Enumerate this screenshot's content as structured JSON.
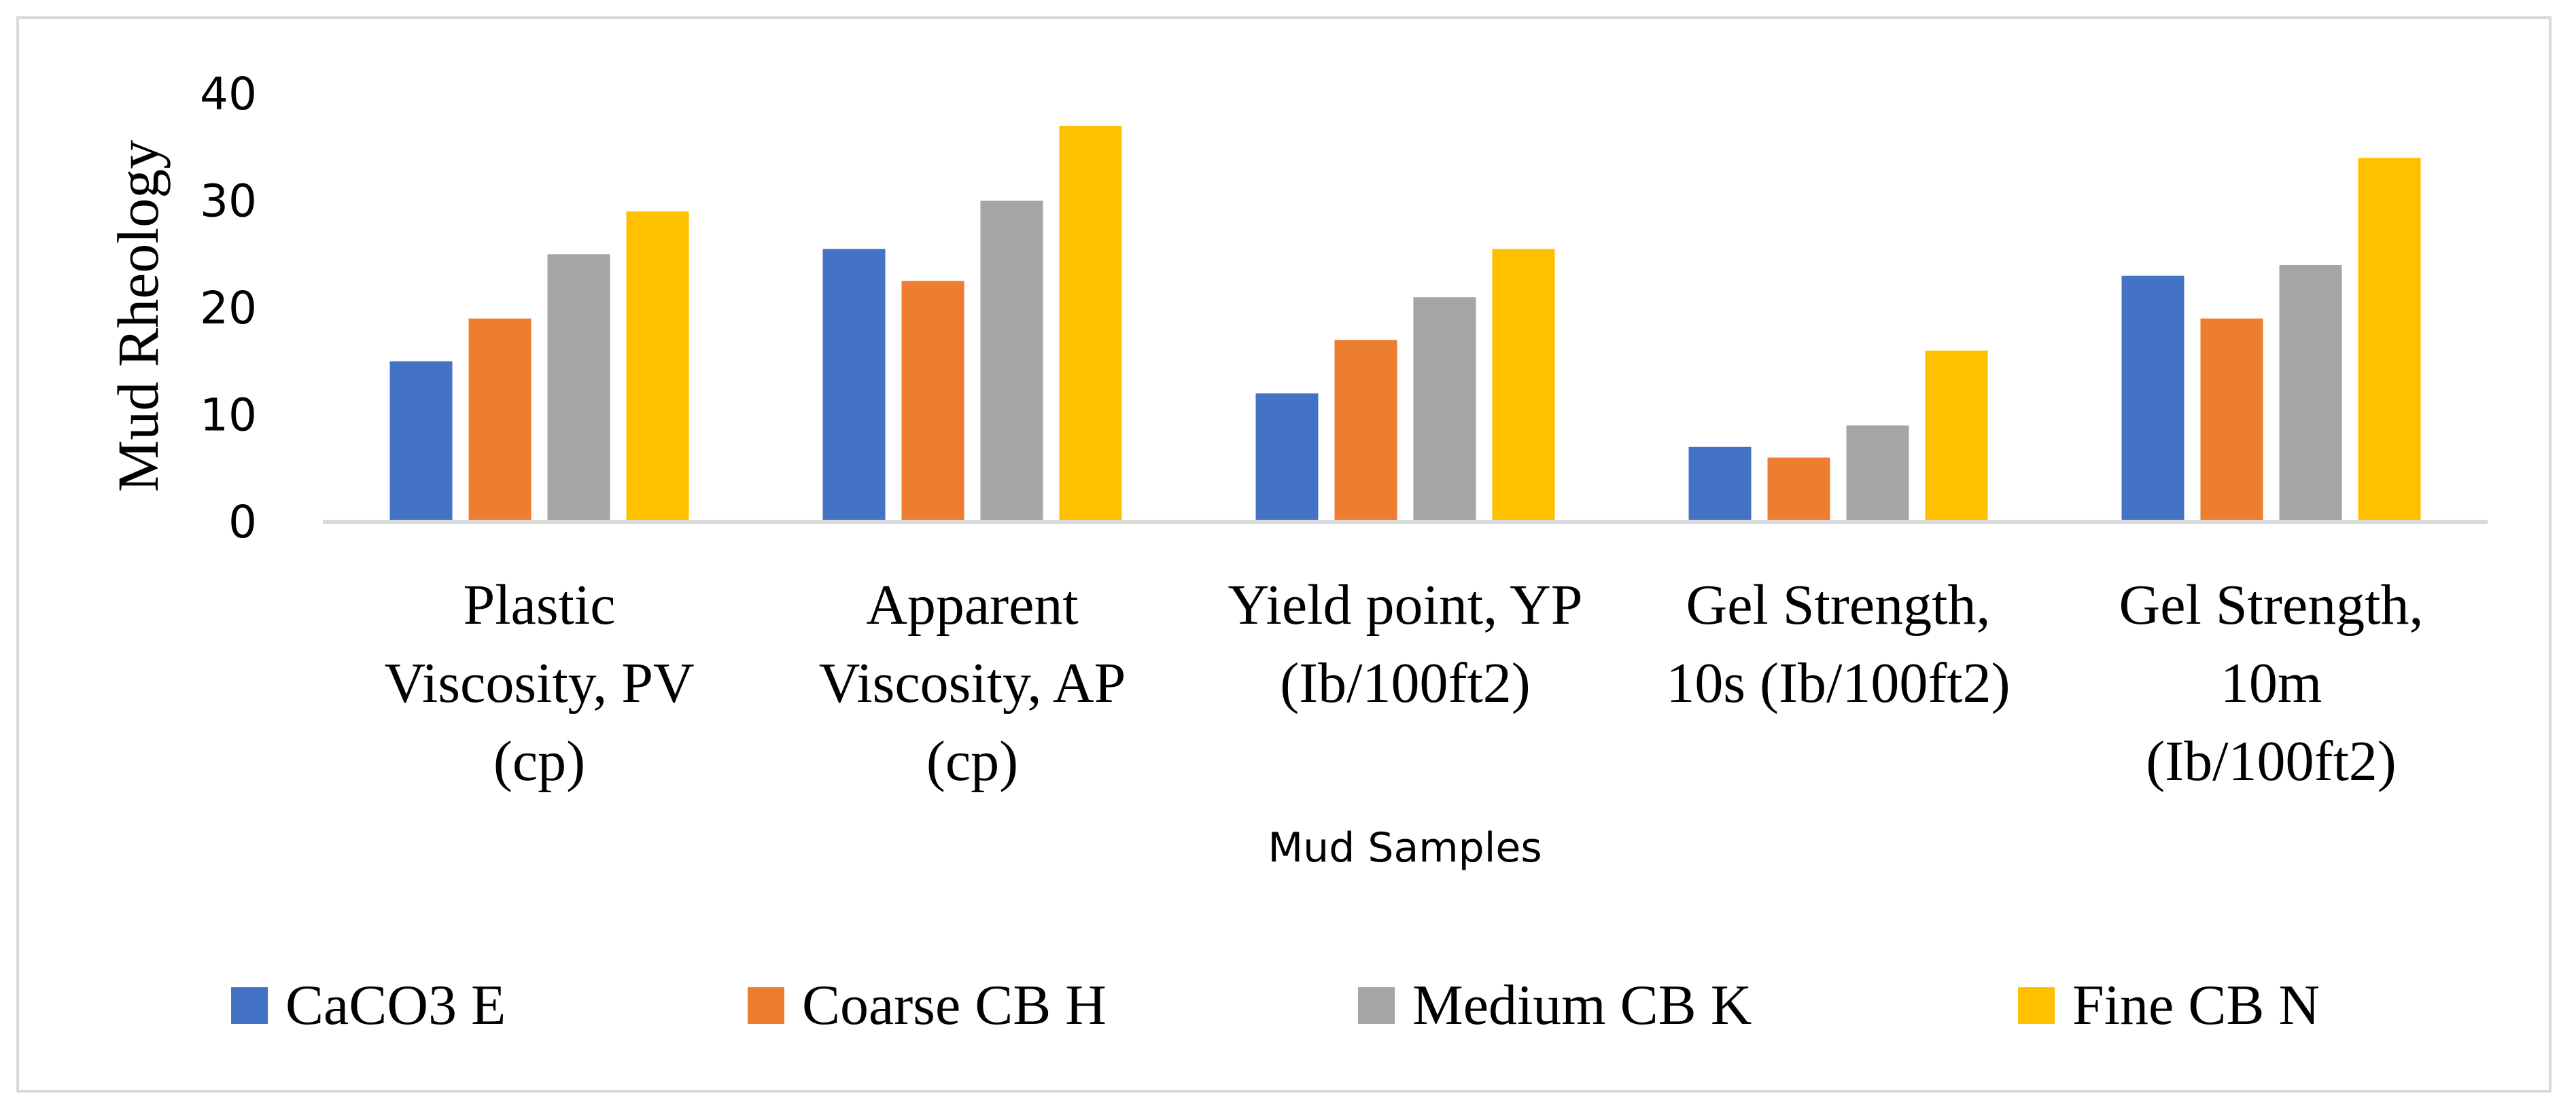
{
  "chart_data": {
    "type": "bar",
    "title": "",
    "xlabel": "Mud Samples",
    "ylabel": "Mud Rheology",
    "ylim": [
      0,
      40
    ],
    "yticks": [
      0,
      10,
      20,
      30,
      40
    ],
    "grid": false,
    "legend_position": "bottom",
    "categories": [
      [
        "Plastic",
        "Viscosity, PV",
        "(cp)"
      ],
      [
        "Apparent",
        "Viscosity, AP",
        "(cp)"
      ],
      [
        "Yield point, YP",
        "(Ib/100ft2)"
      ],
      [
        "Gel Strength,",
        "10s (Ib/100ft2)"
      ],
      [
        "Gel Strength,",
        "10m",
        "(Ib/100ft2)"
      ]
    ],
    "series": [
      {
        "name": "CaCO3 E",
        "color": "#4472c4",
        "values": [
          15,
          25.5,
          12,
          7,
          23
        ]
      },
      {
        "name": "Coarse CB H",
        "color": "#ed7d31",
        "values": [
          19,
          22.5,
          17,
          6,
          19
        ]
      },
      {
        "name": "Medium CB K",
        "color": "#a5a5a5",
        "values": [
          25,
          30,
          21,
          9,
          24
        ]
      },
      {
        "name": "Fine CB N",
        "color": "#ffc000",
        "values": [
          29,
          37,
          25.5,
          16,
          34
        ]
      }
    ],
    "axis_color": "#d9d9d9"
  }
}
